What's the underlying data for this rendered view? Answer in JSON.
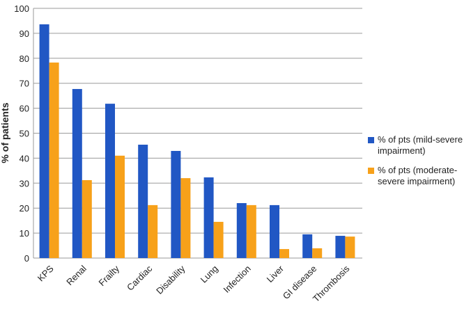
{
  "chart_data": {
    "type": "bar",
    "ylabel": "% of patients",
    "categories": [
      "KPS",
      "Renal",
      "Frailty",
      "Cardiac",
      "Disability",
      "Lung",
      "Infection",
      "Liver",
      "GI disease",
      "Thrombosis"
    ],
    "series": [
      {
        "name": "% of pts (mild-severe impairment)",
        "color": "#2157c4",
        "values": [
          93.6,
          67.7,
          61.8,
          45.4,
          42.9,
          32.3,
          22,
          21.2,
          9.5,
          8.9
        ]
      },
      {
        "name": "% of pts (moderate-severe impairment)",
        "color": "#f7a11a",
        "values": [
          78.3,
          31.2,
          41,
          21.2,
          32,
          14.5,
          21.2,
          3.6,
          3.9,
          8.6
        ]
      }
    ],
    "ylim": [
      0,
      100
    ],
    "yticks": [
      0,
      10,
      20,
      30,
      40,
      50,
      60,
      70,
      80,
      90,
      100
    ],
    "grid": true,
    "legend": "right"
  }
}
